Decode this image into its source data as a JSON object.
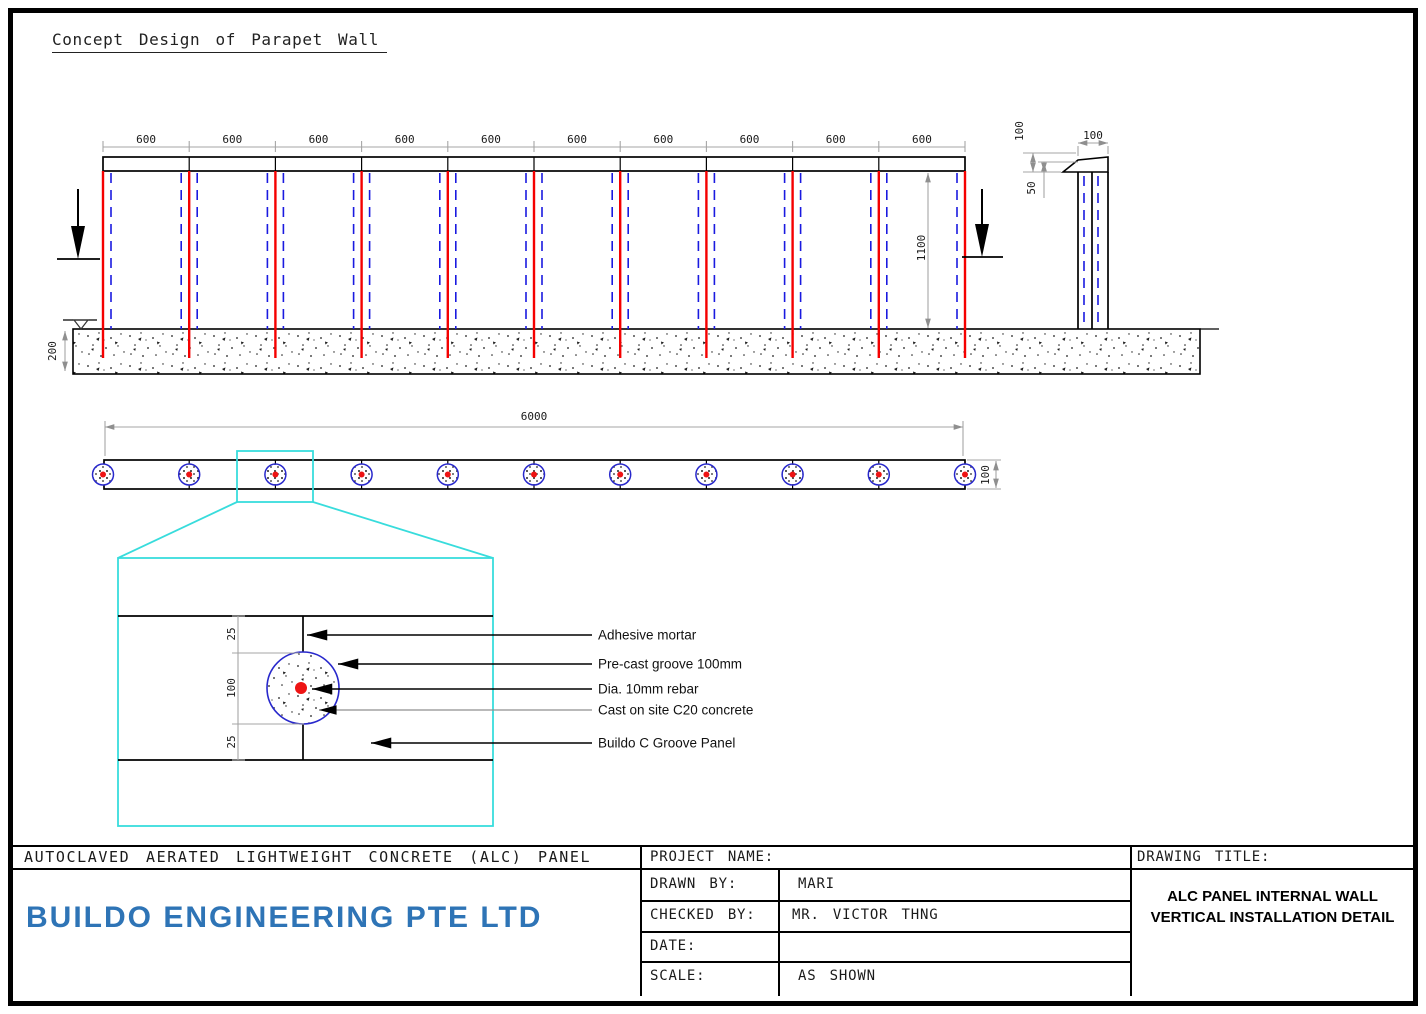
{
  "page": {
    "title": "Concept Design of Parapet Wall"
  },
  "elevation": {
    "panel_dims": [
      "600",
      "600",
      "600",
      "600",
      "600",
      "600",
      "600",
      "600",
      "600",
      "600"
    ],
    "wall_height_dim": "1100",
    "foundation_depth_dim": "200"
  },
  "wall_section": {
    "coping_height_dim": "100",
    "coping_edge_dim": "50",
    "panel_width_dim": "100"
  },
  "plan": {
    "total_length_dim": "6000",
    "panel_thickness_dim": "100"
  },
  "groove_detail": {
    "dim_top": "25",
    "dim_groove": "100",
    "dim_bottom": "25",
    "labels": [
      "Adhesive mortar",
      "Pre-cast groove 100mm",
      "Dia. 10mm rebar",
      "Cast on site C20 concrete",
      "Buildo C Groove Panel"
    ]
  },
  "title_block": {
    "material_title": "AUTOCLAVED AERATED LIGHTWEIGHT CONCRETE (ALC) PANEL",
    "company_name": "BUILDO ENGINEERING PTE LTD",
    "project_name_label": "PROJECT NAME:",
    "drawn_by_label": "DRAWN BY:",
    "drawn_by_value": "MARI",
    "checked_by_label": "CHECKED BY:",
    "checked_by_value": "MR. VICTOR THNG",
    "date_label": "DATE:",
    "date_value": "",
    "scale_label": "SCALE:",
    "scale_value": "AS SHOWN",
    "drawing_title_label": "DRAWING TITLE:",
    "drawing_title_line1": "ALC PANEL INTERNAL WALL",
    "drawing_title_line2": "VERTICAL INSTALLATION DETAIL"
  },
  "colors": {
    "rebar_red": "#f50000",
    "hidden_line_blue": "#1a1ae0",
    "callout_cyan": "#38dcdc",
    "dimension_gray": "#a5a5a5",
    "company_blue": "#2e74b6",
    "ink_black": "#000000"
  }
}
